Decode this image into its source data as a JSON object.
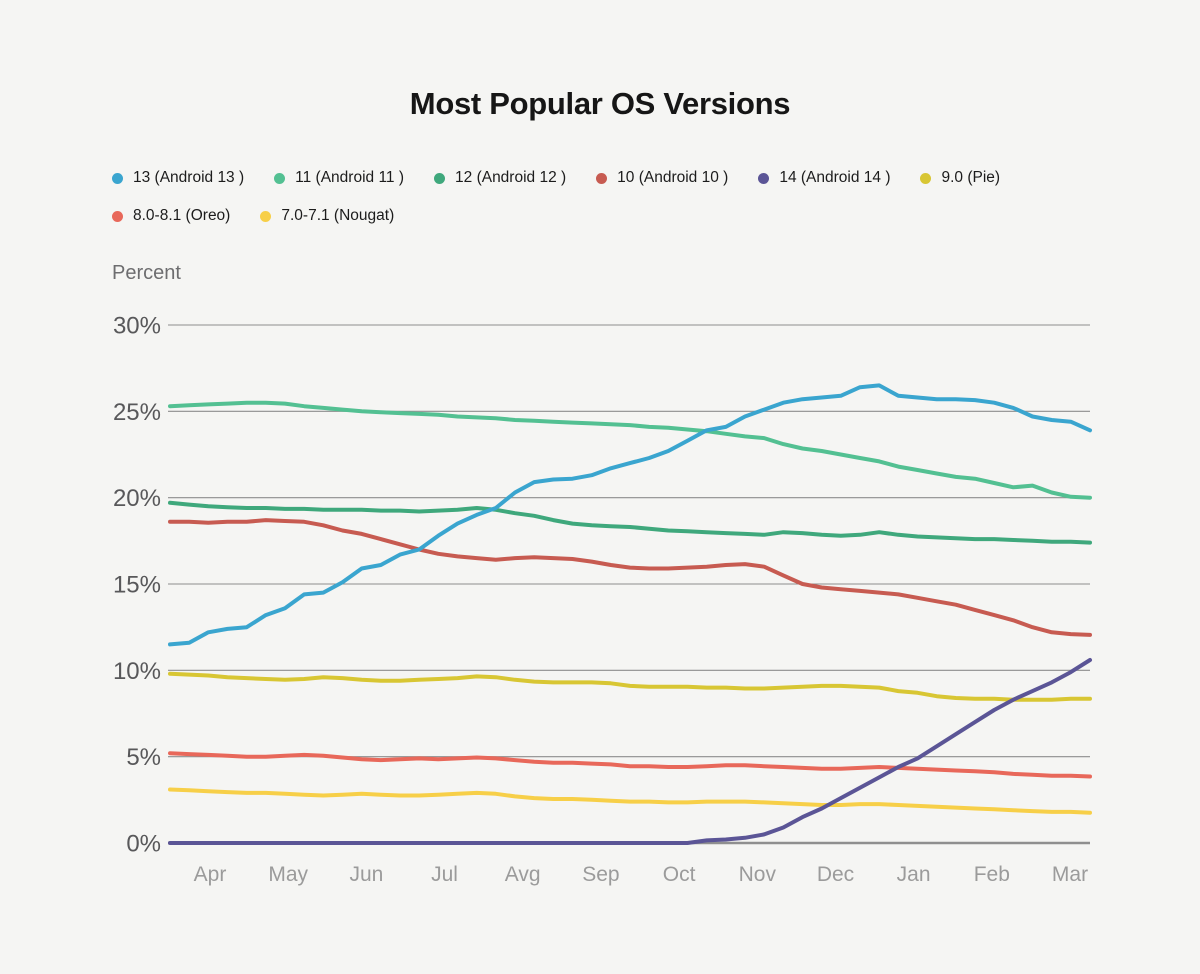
{
  "title": "Most Popular OS Versions",
  "chart_data": {
    "type": "line",
    "title": "Most Popular OS Versions",
    "ylabel": "Percent",
    "xlabel": "",
    "ylim": [
      0,
      30
    ],
    "grid": true,
    "legend_position": "top-left",
    "y_tick_values": [
      30,
      25,
      20,
      15,
      10,
      5,
      0
    ],
    "y_tick_labels": [
      "30%",
      "25%",
      "20%",
      "15%",
      "10%",
      "5%",
      "0%"
    ],
    "x_ticks": [
      "Apr",
      "May",
      "Jun",
      "Jul",
      "Avg",
      "Sep",
      "Oct",
      "Nov",
      "Dec",
      "Jan",
      "Feb",
      "Mar"
    ],
    "colors": {
      "background": "#f5f5f3",
      "gridline": "#8d8d8d",
      "axis_line": "#8f8f8f",
      "y_tick_text": "#58585a",
      "x_tick_text": "#9b9b9b"
    },
    "series": [
      {
        "name": "13 (Android 13 )",
        "color": "#3aa5cf",
        "values": [
          11.5,
          11.6,
          12.2,
          12.4,
          12.5,
          13.2,
          13.6,
          14.4,
          14.5,
          15.1,
          15.9,
          16.1,
          16.7,
          17.0,
          17.8,
          18.5,
          19.0,
          19.4,
          20.3,
          20.9,
          21.05,
          21.1,
          21.3,
          21.7,
          22.0,
          22.3,
          22.7,
          23.3,
          23.9,
          24.1,
          24.7,
          25.1,
          25.5,
          25.7,
          25.8,
          25.9,
          26.4,
          26.5,
          25.9,
          25.8,
          25.7,
          25.7,
          25.65,
          25.5,
          25.2,
          24.7,
          24.5,
          24.4,
          23.9
        ]
      },
      {
        "name": "11 (Android 11 )",
        "color": "#53c092",
        "values": [
          25.3,
          25.35,
          25.4,
          25.45,
          25.5,
          25.5,
          25.45,
          25.3,
          25.2,
          25.1,
          25.0,
          24.95,
          24.9,
          24.85,
          24.8,
          24.7,
          24.65,
          24.6,
          24.5,
          24.45,
          24.4,
          24.35,
          24.3,
          24.25,
          24.2,
          24.1,
          24.05,
          23.95,
          23.85,
          23.7,
          23.55,
          23.45,
          23.1,
          22.85,
          22.7,
          22.5,
          22.3,
          22.1,
          21.8,
          21.6,
          21.4,
          21.2,
          21.1,
          20.85,
          20.6,
          20.7,
          20.3,
          20.05,
          20.0
        ]
      },
      {
        "name": "12 (Android 12 )",
        "color": "#3fa87c",
        "values": [
          19.7,
          19.6,
          19.5,
          19.45,
          19.4,
          19.4,
          19.35,
          19.35,
          19.3,
          19.3,
          19.3,
          19.25,
          19.25,
          19.2,
          19.25,
          19.3,
          19.4,
          19.3,
          19.1,
          18.95,
          18.7,
          18.5,
          18.4,
          18.35,
          18.3,
          18.2,
          18.1,
          18.05,
          18.0,
          17.95,
          17.9,
          17.85,
          18.0,
          17.95,
          17.85,
          17.8,
          17.85,
          18.0,
          17.85,
          17.75,
          17.7,
          17.65,
          17.6,
          17.6,
          17.55,
          17.5,
          17.45,
          17.45,
          17.4
        ]
      },
      {
        "name": "10 (Android 10 )",
        "color": "#c75b51",
        "values": [
          18.6,
          18.6,
          18.55,
          18.6,
          18.6,
          18.7,
          18.65,
          18.6,
          18.4,
          18.1,
          17.9,
          17.6,
          17.3,
          17.0,
          16.75,
          16.6,
          16.5,
          16.4,
          16.5,
          16.55,
          16.5,
          16.45,
          16.3,
          16.1,
          15.95,
          15.9,
          15.9,
          15.95,
          16.0,
          16.1,
          16.15,
          16.0,
          15.5,
          15.0,
          14.8,
          14.7,
          14.6,
          14.5,
          14.4,
          14.2,
          14.0,
          13.8,
          13.5,
          13.2,
          12.9,
          12.5,
          12.2,
          12.1,
          12.05
        ]
      },
      {
        "name": "14 (Android 14 )",
        "color": "#5b5596",
        "values": [
          0,
          0,
          0,
          0,
          0,
          0,
          0,
          0,
          0,
          0,
          0,
          0,
          0,
          0,
          0,
          0,
          0,
          0,
          0,
          0,
          0,
          0,
          0,
          0,
          0,
          0,
          0,
          0,
          0.15,
          0.2,
          0.3,
          0.5,
          0.9,
          1.5,
          2.0,
          2.6,
          3.2,
          3.8,
          4.4,
          4.9,
          5.6,
          6.3,
          7.0,
          7.7,
          8.3,
          8.8,
          9.3,
          9.9,
          10.6
        ]
      },
      {
        "name": "9.0 (Pie)",
        "color": "#d8c633",
        "values": [
          9.8,
          9.75,
          9.7,
          9.6,
          9.55,
          9.5,
          9.45,
          9.5,
          9.6,
          9.55,
          9.45,
          9.4,
          9.4,
          9.45,
          9.5,
          9.55,
          9.65,
          9.6,
          9.45,
          9.35,
          9.3,
          9.3,
          9.3,
          9.25,
          9.1,
          9.05,
          9.05,
          9.05,
          9.0,
          9.0,
          8.95,
          8.95,
          9.0,
          9.05,
          9.1,
          9.1,
          9.05,
          9.0,
          8.8,
          8.7,
          8.5,
          8.4,
          8.35,
          8.35,
          8.3,
          8.3,
          8.3,
          8.35,
          8.35
        ]
      },
      {
        "name": "8.0-8.1 (Oreo)",
        "color": "#e8685a",
        "values": [
          5.2,
          5.15,
          5.1,
          5.05,
          5.0,
          5.0,
          5.05,
          5.1,
          5.05,
          4.95,
          4.85,
          4.8,
          4.85,
          4.9,
          4.85,
          4.9,
          4.95,
          4.9,
          4.8,
          4.7,
          4.65,
          4.65,
          4.6,
          4.55,
          4.45,
          4.45,
          4.4,
          4.4,
          4.45,
          4.5,
          4.5,
          4.45,
          4.4,
          4.35,
          4.3,
          4.3,
          4.35,
          4.4,
          4.35,
          4.3,
          4.25,
          4.2,
          4.15,
          4.1,
          4.0,
          3.95,
          3.9,
          3.9,
          3.85
        ]
      },
      {
        "name": "7.0-7.1 (Nougat)",
        "color": "#f7cf48",
        "values": [
          3.1,
          3.05,
          3.0,
          2.95,
          2.9,
          2.9,
          2.85,
          2.8,
          2.75,
          2.8,
          2.85,
          2.8,
          2.75,
          2.75,
          2.8,
          2.85,
          2.9,
          2.85,
          2.7,
          2.6,
          2.55,
          2.55,
          2.5,
          2.45,
          2.4,
          2.4,
          2.35,
          2.35,
          2.4,
          2.4,
          2.4,
          2.35,
          2.3,
          2.25,
          2.2,
          2.2,
          2.25,
          2.25,
          2.2,
          2.15,
          2.1,
          2.05,
          2.0,
          1.95,
          1.9,
          1.85,
          1.8,
          1.8,
          1.75
        ]
      }
    ]
  }
}
